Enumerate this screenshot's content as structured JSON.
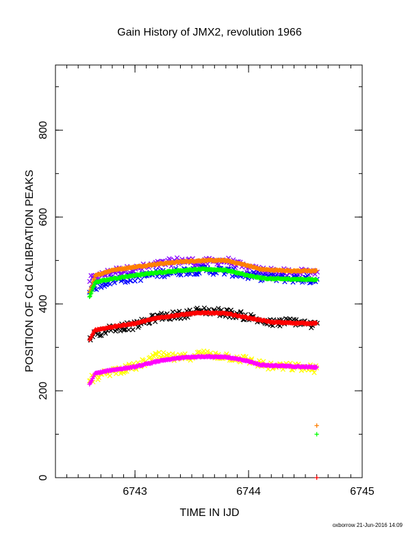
{
  "chart_data": {
    "type": "scatter",
    "title": "Gain History of JMX2, revolution 1966",
    "xlabel": "TIME IN IJD",
    "ylabel": "POSITION OF Cd CALIBRATION PEAKS",
    "xlim": [
      6742.3,
      6745.0
    ],
    "ylim": [
      0,
      950
    ],
    "xticks": [
      6743,
      6744,
      6745
    ],
    "xtick_labels": [
      "6743",
      "6744",
      "6745"
    ],
    "xminor_step": 0.1,
    "yticks": [
      0,
      200,
      400,
      600,
      800
    ],
    "ytick_labels": [
      "0",
      "200",
      "400",
      "600",
      "800"
    ],
    "yminor_step": 100,
    "grid": false,
    "series": [
      {
        "marker": "x",
        "color": "#8800ff",
        "x": [
          6742.6,
          6742.8,
          6743.0,
          6743.2,
          6743.4,
          6743.6,
          6743.8,
          6744.0,
          6744.2,
          6744.4,
          6744.6
        ],
        "y": [
          455,
          475,
          480,
          490,
          500,
          495,
          500,
          480,
          475,
          470,
          475
        ]
      },
      {
        "marker": "x",
        "color": "#0000ff",
        "x": [
          6742.6,
          6742.8,
          6743.0,
          6743.2,
          6743.4,
          6743.6,
          6743.8,
          6744.0,
          6744.2,
          6744.4,
          6744.6
        ],
        "y": [
          435,
          455,
          460,
          470,
          475,
          478,
          475,
          465,
          460,
          458,
          455
        ]
      },
      {
        "marker": "+",
        "color": "#ff8000",
        "x": [
          6742.6,
          6742.65,
          6742.8,
          6743.0,
          6743.2,
          6743.4,
          6743.6,
          6743.8,
          6744.0,
          6744.1,
          6744.2,
          6744.4,
          6744.6
        ],
        "y": [
          425,
          465,
          478,
          485,
          492,
          497,
          500,
          500,
          488,
          480,
          478,
          476,
          476
        ]
      },
      {
        "marker": "+",
        "color": "#00ff00",
        "x": [
          6742.6,
          6742.65,
          6742.8,
          6743.0,
          6743.2,
          6743.4,
          6743.6,
          6743.8,
          6744.0,
          6744.1,
          6744.2,
          6744.4,
          6744.6
        ],
        "y": [
          416,
          450,
          458,
          466,
          472,
          477,
          480,
          478,
          465,
          460,
          458,
          457,
          456
        ]
      },
      {
        "marker": "x",
        "color": "#000000",
        "x": [
          6742.6,
          6742.8,
          6743.0,
          6743.2,
          6743.4,
          6743.6,
          6743.8,
          6744.0,
          6744.2,
          6744.4,
          6744.6
        ],
        "y": [
          325,
          345,
          350,
          370,
          375,
          385,
          380,
          370,
          355,
          360,
          350
        ]
      },
      {
        "marker": "+",
        "color": "#ff0000",
        "x": [
          6742.6,
          6742.65,
          6742.8,
          6743.0,
          6743.2,
          6743.4,
          6743.6,
          6743.8,
          6744.0,
          6744.2,
          6744.4,
          6744.6
        ],
        "y": [
          318,
          340,
          347,
          355,
          368,
          375,
          380,
          378,
          368,
          358,
          356,
          355
        ]
      },
      {
        "marker": "x",
        "color": "#ffff00",
        "x": [
          6742.6,
          6742.8,
          6743.0,
          6743.2,
          6743.4,
          6743.6,
          6743.8,
          6744.0,
          6744.2,
          6744.4,
          6744.6
        ],
        "y": [
          225,
          245,
          255,
          280,
          275,
          285,
          280,
          270,
          255,
          255,
          250
        ]
      },
      {
        "marker": "+",
        "color": "#ff00ff",
        "x": [
          6742.6,
          6742.65,
          6742.8,
          6743.0,
          6743.2,
          6743.4,
          6743.6,
          6743.8,
          6744.0,
          6744.1,
          6744.2,
          6744.4,
          6744.6
        ],
        "y": [
          215,
          240,
          248,
          255,
          268,
          276,
          279,
          278,
          268,
          260,
          258,
          256,
          254
        ]
      }
    ],
    "extra_points": [
      {
        "marker": "+",
        "color": "#ff8000",
        "x": 6744.6,
        "y": 120
      },
      {
        "marker": "+",
        "color": "#00ff00",
        "x": 6744.6,
        "y": 100
      },
      {
        "marker": "+",
        "color": "#ff0000",
        "x": 6744.6,
        "y": 0
      }
    ],
    "footer": "oxborrow 21-Jun-2016 14:09"
  }
}
